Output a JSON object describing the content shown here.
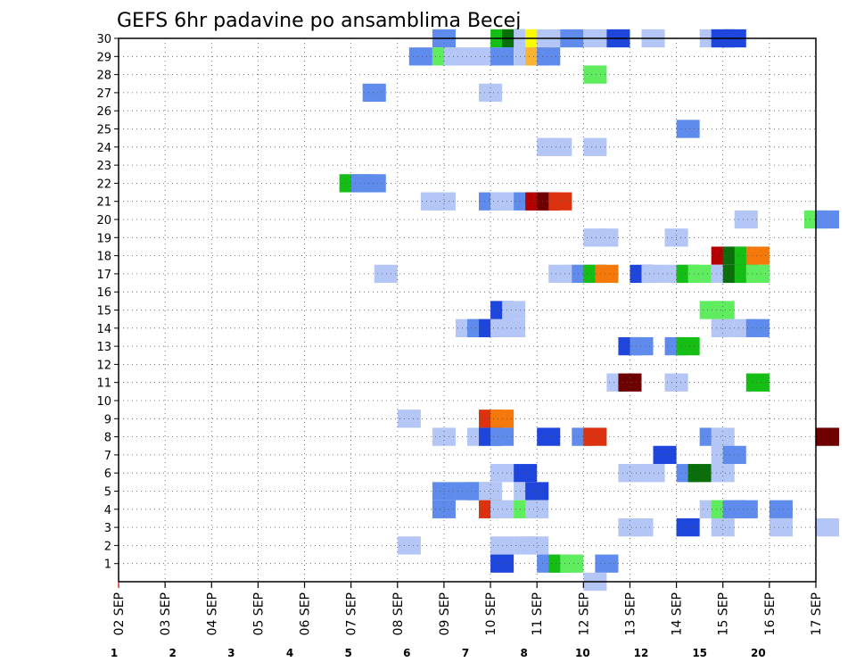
{
  "chart_data": {
    "type": "heatmap",
    "title": "GEFS 6hr padavine po ansamblima Becej",
    "xlabel": "",
    "ylabel": "",
    "x_tick_labels": [
      "02 SEP",
      "03 SEP",
      "04 SEP",
      "05 SEP",
      "06 SEP",
      "07 SEP",
      "08 SEP",
      "09 SEP",
      "10 SEP",
      "11 SEP",
      "12 SEP",
      "13 SEP",
      "14 SEP",
      "15 SEP",
      "16 SEP",
      "17 SEP"
    ],
    "y_tick_labels": [
      "1",
      "2",
      "3",
      "4",
      "5",
      "6",
      "7",
      "8",
      "9",
      "10",
      "11",
      "12",
      "13",
      "14",
      "15",
      "16",
      "17",
      "18",
      "19",
      "20",
      "21",
      "22",
      "23",
      "24",
      "25",
      "26",
      "27",
      "28",
      "29",
      "30"
    ],
    "xlim": [
      0,
      60
    ],
    "ylim": [
      0,
      30
    ],
    "time_step_hours": 6,
    "grid": "dotted",
    "legend": {
      "placement": "bottom",
      "thresholds": [
        "1",
        "2",
        "3",
        "4",
        "5",
        "6",
        "7",
        "8",
        "10",
        "12",
        "15",
        "20"
      ],
      "colors": [
        "#b4c6f5",
        "#5f8cec",
        "#1e46dc",
        "#5fec5f",
        "#14be14",
        "#0a6e0a",
        "#fafa00",
        "#fab432",
        "#f5780a",
        "#dc320f",
        "#b40000",
        "#6e0000"
      ]
    },
    "cells": [
      {
        "m": 30,
        "t": [
          [
            13.5,
            2
          ],
          [
            16,
            5
          ],
          [
            16.5,
            6
          ],
          [
            17,
            1
          ],
          [
            17.5,
            7
          ],
          [
            18,
            1
          ],
          [
            19,
            2
          ],
          [
            20,
            1
          ],
          [
            21,
            3
          ],
          [
            22.5,
            1
          ],
          [
            25,
            1
          ],
          [
            25.5,
            3
          ],
          [
            26,
            3
          ]
        ]
      },
      {
        "m": 29,
        "t": [
          [
            12.5,
            2
          ],
          [
            13.5,
            4
          ],
          [
            14,
            1
          ],
          [
            15,
            1
          ],
          [
            16,
            2
          ],
          [
            17,
            1
          ],
          [
            17.5,
            8
          ],
          [
            18,
            2
          ]
        ]
      },
      {
        "m": 28,
        "t": [
          [
            20,
            4
          ]
        ]
      },
      {
        "m": 27,
        "t": [
          [
            10.5,
            2
          ],
          [
            15.5,
            1
          ]
        ]
      },
      {
        "m": 25,
        "t": [
          [
            24,
            2
          ]
        ]
      },
      {
        "m": 24,
        "t": [
          [
            18,
            1
          ],
          [
            18.5,
            1
          ],
          [
            20,
            1
          ]
        ]
      },
      {
        "m": 22,
        "t": [
          [
            9.5,
            5
          ],
          [
            10,
            2
          ],
          [
            10.5,
            2
          ]
        ]
      },
      {
        "m": 21,
        "t": [
          [
            13,
            1
          ],
          [
            13.5,
            1
          ],
          [
            15.5,
            2
          ],
          [
            16,
            1
          ],
          [
            16.5,
            1
          ],
          [
            17,
            2
          ],
          [
            17.5,
            11
          ],
          [
            18,
            12
          ],
          [
            18.5,
            10
          ]
        ]
      },
      {
        "m": 20,
        "t": [
          [
            26.5,
            1
          ],
          [
            29.5,
            4
          ],
          [
            30,
            2
          ]
        ]
      },
      {
        "m": 19,
        "t": [
          [
            20,
            1
          ],
          [
            20.5,
            1
          ],
          [
            23.5,
            1
          ]
        ]
      },
      {
        "m": 18,
        "t": [
          [
            25.5,
            11
          ],
          [
            26,
            6
          ],
          [
            26.5,
            5
          ],
          [
            27,
            9
          ]
        ]
      },
      {
        "m": 17,
        "t": [
          [
            11,
            1
          ],
          [
            18.5,
            1
          ],
          [
            19,
            1
          ],
          [
            19.5,
            2
          ],
          [
            20,
            5
          ],
          [
            20.5,
            9
          ],
          [
            22,
            3
          ],
          [
            22.5,
            1
          ],
          [
            23.5,
            1
          ],
          [
            24,
            5
          ],
          [
            24.5,
            4
          ],
          [
            25.5,
            1
          ],
          [
            26,
            6
          ],
          [
            26.5,
            5
          ],
          [
            27,
            4
          ]
        ]
      },
      {
        "m": 15,
        "t": [
          [
            16,
            3
          ],
          [
            16.5,
            1
          ],
          [
            25,
            4
          ],
          [
            25.5,
            4
          ]
        ]
      },
      {
        "m": 14,
        "t": [
          [
            14.5,
            1
          ],
          [
            15,
            2
          ],
          [
            15.5,
            3
          ],
          [
            16,
            1
          ],
          [
            16.5,
            1
          ],
          [
            25.5,
            1
          ],
          [
            26.5,
            1
          ],
          [
            27,
            2
          ]
        ]
      },
      {
        "m": 13,
        "t": [
          [
            21.5,
            3
          ],
          [
            22,
            2
          ],
          [
            23.5,
            2
          ],
          [
            24,
            5
          ]
        ]
      },
      {
        "m": 11,
        "t": [
          [
            21,
            1
          ],
          [
            21.5,
            12
          ],
          [
            23.5,
            1
          ],
          [
            27,
            5
          ]
        ]
      },
      {
        "m": 9,
        "t": [
          [
            12,
            1
          ],
          [
            15.5,
            10
          ],
          [
            16,
            9
          ]
        ]
      },
      {
        "m": 8,
        "t": [
          [
            13.5,
            1
          ],
          [
            15,
            1
          ],
          [
            15.5,
            3
          ],
          [
            16,
            2
          ],
          [
            18,
            3
          ],
          [
            19.5,
            2
          ],
          [
            20,
            10
          ],
          [
            25,
            2
          ],
          [
            25.5,
            1
          ],
          [
            30,
            12
          ]
        ]
      },
      {
        "m": 7,
        "t": [
          [
            23,
            3
          ],
          [
            25.5,
            1
          ],
          [
            26,
            2
          ]
        ]
      },
      {
        "m": 6,
        "t": [
          [
            16,
            1
          ],
          [
            17,
            3
          ],
          [
            21.5,
            1
          ],
          [
            22.5,
            1
          ],
          [
            24,
            2
          ],
          [
            24.5,
            6
          ],
          [
            25.5,
            1
          ]
        ]
      },
      {
        "m": 5,
        "t": [
          [
            13.5,
            2
          ],
          [
            14.5,
            2
          ],
          [
            15,
            2
          ],
          [
            15.5,
            1
          ],
          [
            17,
            1
          ],
          [
            17.5,
            3
          ]
        ]
      },
      {
        "m": 4,
        "t": [
          [
            13.5,
            2
          ],
          [
            15.5,
            10
          ],
          [
            16,
            1
          ],
          [
            17,
            4
          ],
          [
            17.5,
            1
          ],
          [
            25,
            1
          ],
          [
            25.5,
            4
          ],
          [
            26,
            2
          ],
          [
            26.5,
            2
          ],
          [
            28,
            2
          ]
        ]
      },
      {
        "m": 3,
        "t": [
          [
            21.5,
            1
          ],
          [
            22,
            1
          ],
          [
            24,
            3
          ],
          [
            25.5,
            1
          ],
          [
            28,
            1
          ],
          [
            30,
            1
          ]
        ]
      },
      {
        "m": 2,
        "t": [
          [
            12,
            1
          ],
          [
            16,
            1
          ],
          [
            17,
            1
          ],
          [
            17.5,
            1
          ]
        ]
      },
      {
        "m": 1,
        "t": [
          [
            16,
            3
          ],
          [
            18,
            2
          ],
          [
            18.5,
            5
          ],
          [
            19,
            4
          ],
          [
            20.5,
            2
          ]
        ]
      },
      {
        "m": 0,
        "t": [
          [
            20,
            1
          ]
        ]
      }
    ]
  }
}
